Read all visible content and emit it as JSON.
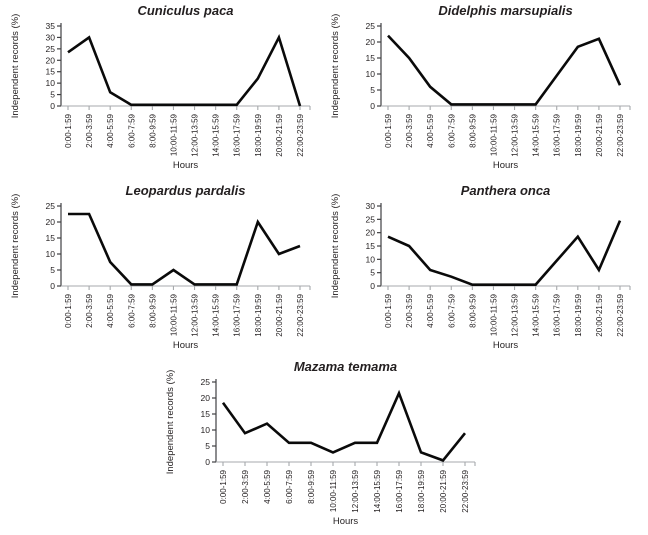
{
  "figure": {
    "background": "#ffffff",
    "line_color": "#0a0a0a",
    "text_color": "#231f20",
    "x_axis_color": "#a7a9ac",
    "y_axis_color": "#404042"
  },
  "chart_data": [
    {
      "type": "line",
      "title": "Cuniculus paca",
      "xlabel": "Hours",
      "ylabel": "Independent records (%)",
      "categories": [
        "0:00-1:59",
        "2:00-3:59",
        "4:00-5:59",
        "6:00-7:59",
        "8:00-9:59",
        "10:00-11:59",
        "12:00-13:59",
        "14:00-15:59",
        "16:00-17:59",
        "18:00-19:59",
        "20:00-21:59",
        "22:00-23:59"
      ],
      "values": [
        23.5,
        30,
        6,
        0.5,
        0.5,
        0.5,
        0.5,
        0.5,
        0.5,
        12,
        30,
        0
      ],
      "ylim": [
        0,
        35
      ],
      "ytick_step": 5,
      "grid": false,
      "legend": "none"
    },
    {
      "type": "line",
      "title": "Didelphis marsupialis",
      "xlabel": "Hours",
      "ylabel": "Independent records (%)",
      "categories": [
        "0:00-1:59",
        "2:00-3:59",
        "4:00-5:59",
        "6:00-7:59",
        "8:00-9:59",
        "10:00-11:59",
        "12:00-13:59",
        "14:00-15:59",
        "16:00-17:59",
        "18:00-19:59",
        "20:00-21:59",
        "22:00-23:59"
      ],
      "values": [
        22,
        15,
        6,
        0.5,
        0.5,
        0.5,
        0.5,
        0.5,
        9.5,
        18.5,
        21,
        6.5
      ],
      "ylim": [
        0,
        25
      ],
      "ytick_step": 5,
      "grid": false,
      "legend": "none"
    },
    {
      "type": "line",
      "title": "Leopardus pardalis",
      "xlabel": "Hours",
      "ylabel": "Independent records (%)",
      "categories": [
        "0:00-1:59",
        "2:00-3:59",
        "4:00-5:59",
        "6:00-7:59",
        "8:00-9:59",
        "10:00-11:59",
        "12:00-13:59",
        "14:00-15:59",
        "16:00-17:59",
        "18:00-19:59",
        "20:00-21:59",
        "22:00-23:59"
      ],
      "values": [
        22.5,
        22.5,
        7.5,
        0.5,
        0.5,
        5,
        0.5,
        0.5,
        0.5,
        20,
        10,
        12.5
      ],
      "ylim": [
        0,
        25
      ],
      "ytick_step": 5,
      "grid": false,
      "legend": "none"
    },
    {
      "type": "line",
      "title": "Panthera onca",
      "xlabel": "Hours",
      "ylabel": "Independent records (%)",
      "categories": [
        "0:00-1:59",
        "2:00-3:59",
        "4:00-5:59",
        "6:00-7:59",
        "8:00-9:59",
        "10:00-11:59",
        "12:00-13:59",
        "14:00-15:59",
        "16:00-17:59",
        "18:00-19:59",
        "20:00-21:59",
        "22:00-23:59"
      ],
      "values": [
        18.5,
        15,
        6,
        3.5,
        0.5,
        0.5,
        0.5,
        0.5,
        9.5,
        18.5,
        6,
        24.5
      ],
      "ylim": [
        0,
        30
      ],
      "ytick_step": 5,
      "grid": false,
      "legend": "none"
    },
    {
      "type": "line",
      "title": "Mazama temama",
      "xlabel": "Hours",
      "ylabel": "Independent records (%)",
      "categories": [
        "0:00-1:59",
        "2:00-3:59",
        "4:00-5:59",
        "6:00-7:59",
        "8:00-9:59",
        "10:00-11:59",
        "12:00-13:59",
        "14:00-15:59",
        "16:00-17:59",
        "18:00-19:59",
        "20:00-21:59",
        "22:00-23:59"
      ],
      "values": [
        18.5,
        9,
        12,
        6,
        6,
        3,
        6,
        6,
        21.5,
        3,
        0.5,
        9
      ],
      "ylim": [
        0,
        25
      ],
      "ytick_step": 5,
      "grid": false,
      "legend": "none"
    }
  ]
}
